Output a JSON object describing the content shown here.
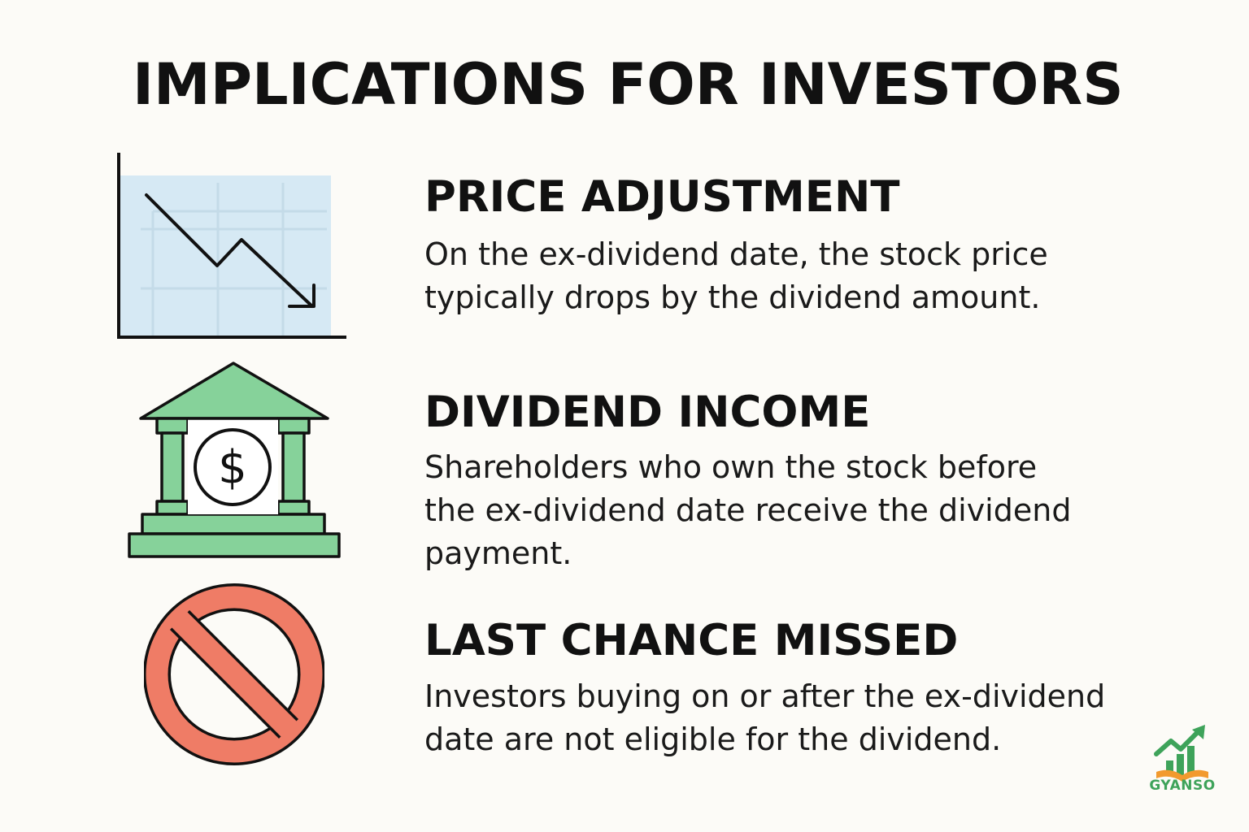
{
  "title": "IMPLICATIONS FOR INVESTORS",
  "sections": [
    {
      "icon": "chart-down-icon",
      "heading": "PRICE ADJUSTMENT",
      "lines": [
        "On the ex-dividend date, the stock price",
        "typically drops by the dividend amount."
      ]
    },
    {
      "icon": "bank-dollar-icon",
      "heading": "DIVIDEND INCOME",
      "lines": [
        "Shareholders who own the stock before",
        "the ex-dividend date receive the dividend",
        "payment."
      ]
    },
    {
      "icon": "prohibited-icon",
      "heading": "LAST CHANCE MISSED",
      "lines": [
        "Investors buying on or after the ex-dividend",
        "date are not eligible for the dividend."
      ]
    }
  ],
  "logo": {
    "text": "GYANSO",
    "icon": "growth-book-logo-icon"
  },
  "colors": {
    "background": "#fcfbf7",
    "chart_fill": "#d6e9f4",
    "bank_green": "#86d29a",
    "prohibit_red": "#ef7c66",
    "logo_green": "#3ea35a",
    "logo_orange": "#f29a2e"
  }
}
